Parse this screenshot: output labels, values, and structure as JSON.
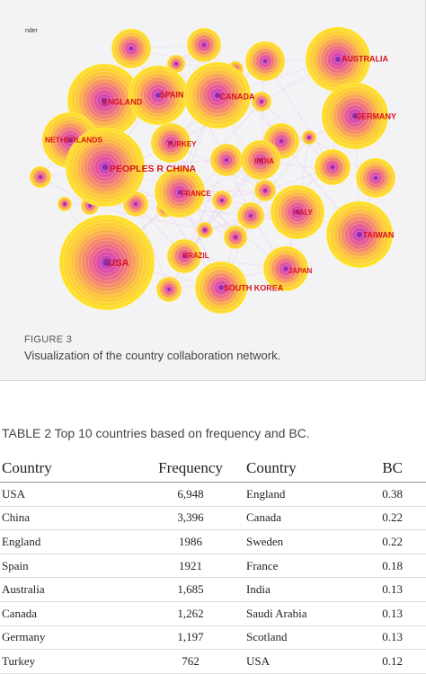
{
  "figure": {
    "corner_text": "nder",
    "label": "FIGURE 3",
    "caption": "Visualization of the country collaboration network.",
    "nodes": [
      {
        "name": "AUSTRALIA",
        "frequency": 1685
      },
      {
        "name": "ENGLAND",
        "frequency": 1986
      },
      {
        "name": "SPAIN",
        "frequency": 1921
      },
      {
        "name": "CANADA",
        "frequency": 1262
      },
      {
        "name": "GERMANY",
        "frequency": 1197
      },
      {
        "name": "NETHERLANDS"
      },
      {
        "name": "TURKEY",
        "frequency": 762
      },
      {
        "name": "PEOPLES R CHINA",
        "frequency": 3396
      },
      {
        "name": "INDIA"
      },
      {
        "name": "FRANCE"
      },
      {
        "name": "ITALY"
      },
      {
        "name": "TAIWAN"
      },
      {
        "name": "USA",
        "frequency": 6948
      },
      {
        "name": "BRAZIL"
      },
      {
        "name": "JAPAN"
      },
      {
        "name": "SOUTH KOREA"
      }
    ]
  },
  "table": {
    "caption": "TABLE 2  Top 10 countries based on frequency and BC.",
    "headers": [
      "Country",
      "Frequency",
      "Country",
      "BC"
    ],
    "rows": [
      [
        "USA",
        "6,948",
        "England",
        "0.38"
      ],
      [
        "China",
        "3,396",
        "Canada",
        "0.22"
      ],
      [
        "England",
        "1986",
        "Sweden",
        "0.22"
      ],
      [
        "Spain",
        "1921",
        "France",
        "0.18"
      ],
      [
        "Australia",
        "1,685",
        "India",
        "0.13"
      ],
      [
        "Canada",
        "1,262",
        "Saudi Arabia",
        "0.13"
      ],
      [
        "Germany",
        "1,197",
        "Scotland",
        "0.13"
      ],
      [
        "Turkey",
        "762",
        "USA",
        "0.12"
      ]
    ]
  }
}
